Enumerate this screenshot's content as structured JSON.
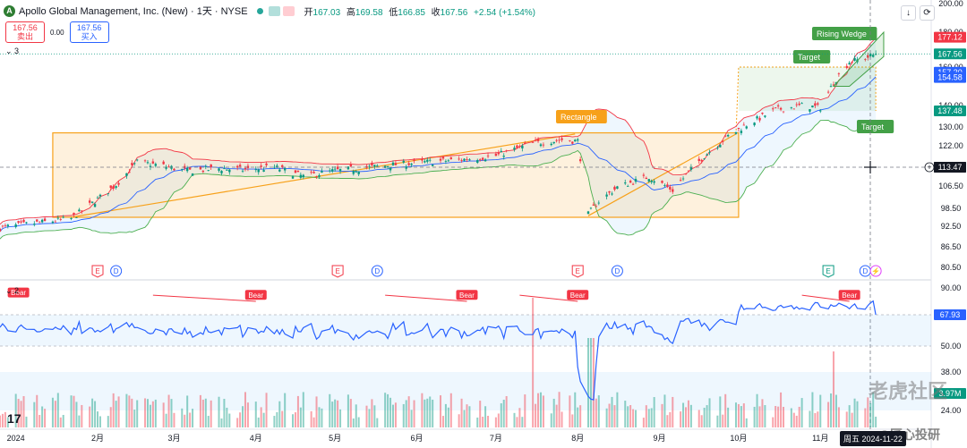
{
  "header": {
    "logo_letter": "A",
    "title": "Apollo Global Management, Inc. (New) · 1天 · NYSE",
    "open_label": "开",
    "open": "167.03",
    "high_label": "高",
    "high": "169.58",
    "low_label": "低",
    "low": "166.85",
    "close_label": "收",
    "close": "167.56",
    "change": "+2.54 (+1.54%)"
  },
  "trade": {
    "sell_price": "167.56",
    "sell_label": "卖出",
    "spread": "0.00",
    "buy_price": "167.56",
    "buy_label": "买入"
  },
  "panes": {
    "main_count": "3",
    "rsi_count": "2"
  },
  "watermarks": {
    "tiger": "老虎社区",
    "author": "@匠心投研"
  },
  "crosshair_date": "周五 2024-11-22",
  "colors": {
    "up": "#089981",
    "down": "#f23645",
    "rectangle": "#f7a11a",
    "bb_mid": "#2962ff",
    "bb_upper": "#f23645",
    "bb_lower": "#4caf50",
    "rsi": "#2962ff",
    "green_label": "#43a047"
  },
  "chart_data": [
    {
      "type": "candlestick",
      "name": "Price",
      "x_labels": [
        "2024",
        "2月",
        "3月",
        "4月",
        "5月",
        "6月",
        "7月",
        "8月",
        "9月",
        "10月",
        "11月"
      ],
      "y_ticks": [
        80.5,
        86.5,
        92.5,
        98.5,
        106.5,
        113.47,
        122.0,
        130.0,
        140.0,
        160.0,
        180.0,
        200.0
      ],
      "ylim": [
        78,
        200
      ],
      "price_labels": [
        {
          "value": 177.12,
          "text": "177.12",
          "color": "#f23645"
        },
        {
          "value": 167.56,
          "text": "167.56",
          "color": "#089981"
        },
        {
          "value": 157.3,
          "text": "157.30",
          "color": "#2962ff"
        },
        {
          "value": 154.58,
          "text": "154.58",
          "color": "#2962ff"
        },
        {
          "value": 137.48,
          "text": "137.48",
          "color": "#089981"
        },
        {
          "value": 113.47,
          "text": "113.47",
          "color": "#131722"
        }
      ],
      "close_path": [
        [
          "2023-12-26",
          92.0
        ],
        [
          "2024-01-08",
          93.5
        ],
        [
          "2024-01-22",
          95.0
        ],
        [
          "2024-01-31",
          101.0
        ],
        [
          "2024-02-08",
          107.0
        ],
        [
          "2024-02-16",
          115.5
        ],
        [
          "2024-02-26",
          114.0
        ],
        [
          "2024-03-06",
          112.0
        ],
        [
          "2024-03-18",
          113.0
        ],
        [
          "2024-03-28",
          112.5
        ],
        [
          "2024-04-08",
          113.5
        ],
        [
          "2024-04-19",
          110.0
        ],
        [
          "2024-04-30",
          112.0
        ],
        [
          "2024-05-10",
          113.0
        ],
        [
          "2024-05-24",
          114.5
        ],
        [
          "2024-06-05",
          115.5
        ],
        [
          "2024-06-18",
          116.5
        ],
        [
          "2024-07-01",
          118.0
        ],
        [
          "2024-07-15",
          123.0
        ],
        [
          "2024-07-26",
          124.5
        ],
        [
          "2024-08-01",
          124.0
        ],
        [
          "2024-08-05",
          96.5
        ],
        [
          "2024-08-09",
          101.0
        ],
        [
          "2024-08-16",
          106.0
        ],
        [
          "2024-08-28",
          110.0
        ],
        [
          "2024-09-06",
          105.0
        ],
        [
          "2024-09-18",
          118.0
        ],
        [
          "2024-09-27",
          126.0
        ],
        [
          "2024-10-04",
          131.0
        ],
        [
          "2024-10-15",
          138.0
        ],
        [
          "2024-10-25",
          140.0
        ],
        [
          "2024-11-01",
          139.0
        ],
        [
          "2024-11-06",
          152.0
        ],
        [
          "2024-11-12",
          163.0
        ],
        [
          "2024-11-18",
          165.0
        ],
        [
          "2024-11-22",
          167.56
        ]
      ],
      "annotations": [
        {
          "text": "Rectangle",
          "type": "box",
          "from": "2024-01-15",
          "to": "2024-10-01",
          "top": 127.5,
          "bottom": 95.5,
          "color": "#f7a11a"
        },
        {
          "text": "Rising Wedge",
          "color": "#43a047"
        },
        {
          "text": "Target",
          "color": "#43a047"
        },
        {
          "text": "Target",
          "color": "#43a047"
        }
      ],
      "event_markers": [
        {
          "date": "2024-02-01",
          "type": "E"
        },
        {
          "date": "2024-02-08",
          "type": "D"
        },
        {
          "date": "2024-05-02",
          "type": "E"
        },
        {
          "date": "2024-05-17",
          "type": "D"
        },
        {
          "date": "2024-08-01",
          "type": "E"
        },
        {
          "date": "2024-08-16",
          "type": "D"
        },
        {
          "date": "2024-11-04",
          "type": "E"
        },
        {
          "date": "2024-11-18",
          "type": "D"
        },
        {
          "date": "2024-11-22",
          "type": "split"
        }
      ]
    },
    {
      "type": "line",
      "name": "RSI",
      "y_ticks": [
        24.0,
        38.0,
        50.0,
        67.93,
        90.0
      ],
      "ylim": [
        20,
        92
      ],
      "current": 67.93,
      "current_text": "67.93",
      "volume_text": "3.97M",
      "bear_labels": [
        {
          "text": "Bear",
          "date": "2024-01-02"
        },
        {
          "text": "Bear",
          "date": "2024-04-01"
        },
        {
          "text": "Bear",
          "date": "2024-06-20"
        },
        {
          "text": "Bear",
          "date": "2024-08-01"
        },
        {
          "text": "Bear",
          "date": "2024-11-12"
        }
      ]
    }
  ]
}
